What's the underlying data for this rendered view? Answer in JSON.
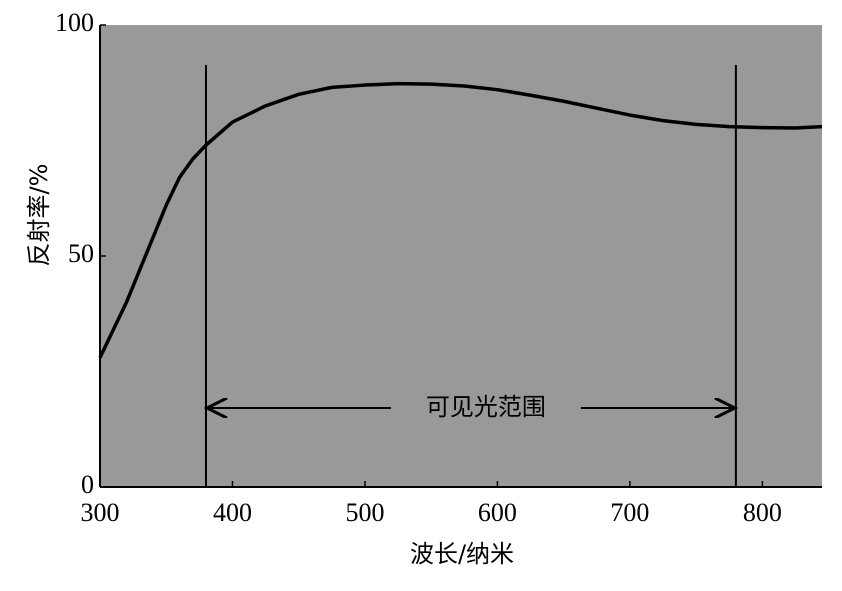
{
  "chart_data": {
    "type": "line",
    "xlabel": "波长/纳米",
    "ylabel": "反射率/%",
    "x": [
      300,
      310,
      320,
      330,
      340,
      350,
      360,
      370,
      380,
      400,
      425,
      450,
      475,
      500,
      525,
      550,
      575,
      600,
      625,
      650,
      675,
      700,
      725,
      750,
      775,
      800,
      825,
      845
    ],
    "series": [
      {
        "name": "反射率",
        "color": "#000000",
        "values": [
          28,
          34,
          40,
          47,
          54,
          61,
          67,
          71,
          74,
          79,
          82.5,
          85,
          86.5,
          87,
          87.3,
          87.2,
          86.8,
          86,
          84.8,
          83.5,
          82,
          80.5,
          79.3,
          78.5,
          78,
          77.8,
          77.7,
          78
        ]
      }
    ],
    "xlim": [
      300,
      845
    ],
    "ylim": [
      0,
      100
    ],
    "xticks": [
      300,
      400,
      500,
      600,
      700,
      800
    ],
    "yticks": [
      0,
      50,
      100
    ],
    "background": "#999999",
    "markers": [
      380,
      780
    ],
    "annotation": "可见光范围"
  }
}
